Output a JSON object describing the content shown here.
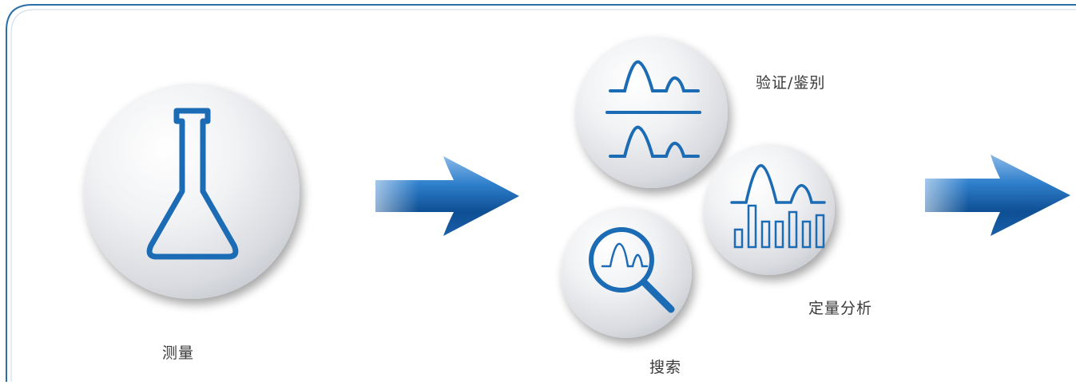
{
  "steps": {
    "measure": {
      "label": "测量",
      "icon": "flask-icon"
    },
    "verify": {
      "label": "验证/鉴别",
      "icon": "spectrum-compare-icon"
    },
    "search": {
      "label": "搜索",
      "icon": "magnifier-spectrum-icon"
    },
    "quantify": {
      "label": "定量分析",
      "icon": "spectrum-bars-icon"
    }
  },
  "colors": {
    "frame": "#2a6fa8",
    "icon_blue": "#1c6bb5",
    "arrow_dark": "#0e4f94",
    "arrow_light": "#6fa8e0",
    "text": "#3a3a3a"
  }
}
